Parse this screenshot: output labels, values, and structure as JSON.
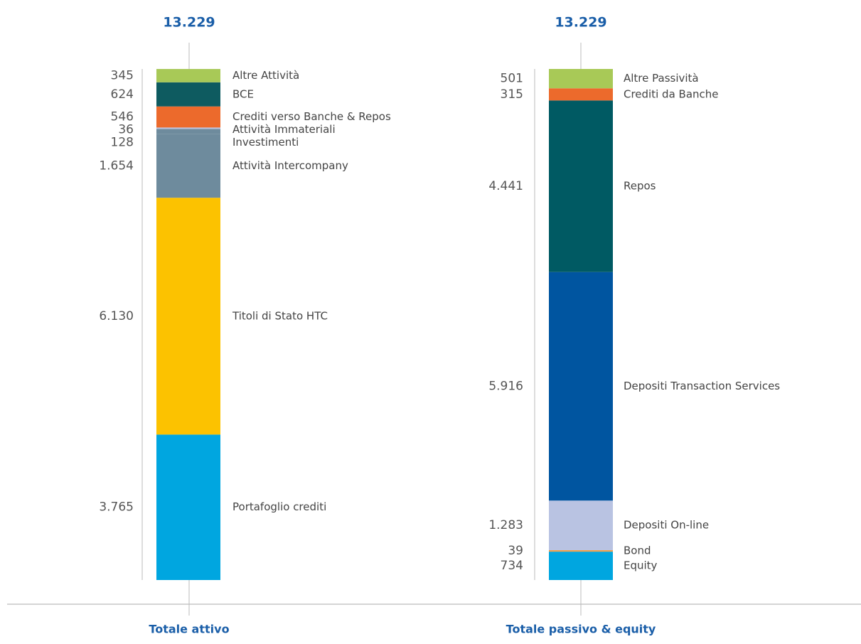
{
  "chart_data": [
    {
      "type": "stacked_bar",
      "total": 13229,
      "total_label": "13.229",
      "category": "Totale attivo",
      "series": [
        {
          "name": "Altre Attività",
          "color": "#a8c957",
          "values": [
            345
          ],
          "value_labels": [
            "345"
          ]
        },
        {
          "name": "BCE",
          "color": "#0e5b60",
          "values": [
            624
          ],
          "value_labels": [
            "624"
          ]
        },
        {
          "name": "Crediti verso Banche & Repos",
          "color": "#ec6a2c",
          "values": [
            546
          ],
          "value_labels": [
            "546"
          ]
        },
        {
          "name": "Attività Immateriali",
          "color": "#b9c3e2",
          "values": [
            36
          ],
          "value_labels": [
            "36"
          ]
        },
        {
          "name": "Investimenti",
          "color": "#6e8b9d",
          "values": [
            128
          ],
          "value_labels": [
            "128"
          ]
        },
        {
          "name": "Attività Intercompany",
          "color": "#6e8b9d",
          "values": [
            1654
          ],
          "value_labels": [
            "1.654"
          ]
        },
        {
          "name": "Titoli di Stato HTC",
          "color": "#fcc200",
          "values": [
            6130
          ],
          "value_labels": [
            "6.130"
          ]
        },
        {
          "name": "Portafoglio crediti",
          "color": "#00a6e0",
          "values": [
            3765
          ],
          "value_labels": [
            "3.765"
          ]
        }
      ]
    },
    {
      "type": "stacked_bar",
      "total": 13229,
      "total_label": "13.229",
      "category": "Totale passivo & equity",
      "series": [
        {
          "name": "Altre Passività",
          "color": "#a8c957",
          "values": [
            501
          ],
          "value_labels": [
            "501"
          ]
        },
        {
          "name": "Crediti da Banche",
          "color": "#ec6a2c",
          "values": [
            315
          ],
          "value_labels": [
            "315"
          ]
        },
        {
          "name": "Repos",
          "color": "#005a63",
          "values": [
            4441
          ],
          "value_labels": [
            "4.441"
          ]
        },
        {
          "name": "Depositi Transaction Services",
          "color": "#0055a0",
          "values": [
            5916
          ],
          "value_labels": [
            "5.916"
          ]
        },
        {
          "name": "Depositi On-line",
          "color": "#b9c3e2",
          "values": [
            1283
          ],
          "value_labels": [
            "1.283"
          ]
        },
        {
          "name": "Bond",
          "color": "#f0a04b",
          "values": [
            39
          ],
          "value_labels": [
            "39"
          ]
        },
        {
          "name": "Equity",
          "color": "#00a6e0",
          "values": [
            734
          ],
          "value_labels": [
            "734"
          ]
        }
      ]
    }
  ]
}
